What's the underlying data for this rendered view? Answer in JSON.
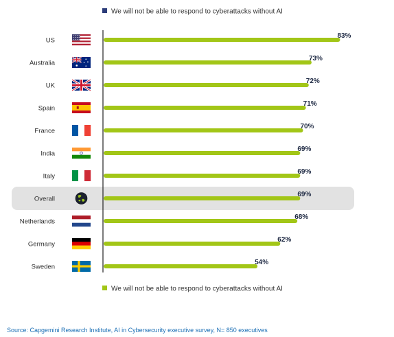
{
  "colors": {
    "bar": "#a2c617",
    "legend_top_marker": "#2d3d7a",
    "highlight_band": "#e2e2e2",
    "axis": "#222222",
    "value_text": "#1f2a44",
    "source_text": "#1b6fb5"
  },
  "legend": {
    "top_label": "We will not be able to respond to cyberattacks without AI",
    "bottom_label": "We will not be able to respond to cyberattacks without AI"
  },
  "source": "Source: Capgemini Research Institute, AI in Cybersecurity executive survey, N= 850 executives",
  "chart_data": {
    "type": "bar",
    "orientation": "horizontal",
    "categories": [
      "US",
      "Australia",
      "UK",
      "Spain",
      "France",
      "India",
      "Italy",
      "Overall",
      "Netherlands",
      "Germany",
      "Sweden"
    ],
    "flags": [
      "us-flag-icon",
      "australia-flag-icon",
      "uk-flag-icon",
      "spain-flag-icon",
      "france-flag-icon",
      "india-flag-icon",
      "italy-flag-icon",
      "globe-icon",
      "netherlands-flag-icon",
      "germany-flag-icon",
      "sweden-flag-icon"
    ],
    "highlighted_category": "Overall",
    "series": [
      {
        "name": "We will not be able to respond to cyberattacks without AI",
        "values": [
          83,
          73,
          72,
          71,
          70,
          69,
          69,
          69,
          68,
          62,
          54
        ],
        "value_labels": [
          "83%",
          "73%",
          "72%",
          "71%",
          "70%",
          "69%",
          "69%",
          "69%",
          "68%",
          "62%",
          "54%"
        ]
      }
    ],
    "xlim": [
      0,
      100
    ],
    "grid": false,
    "legend_position": "top and bottom"
  }
}
